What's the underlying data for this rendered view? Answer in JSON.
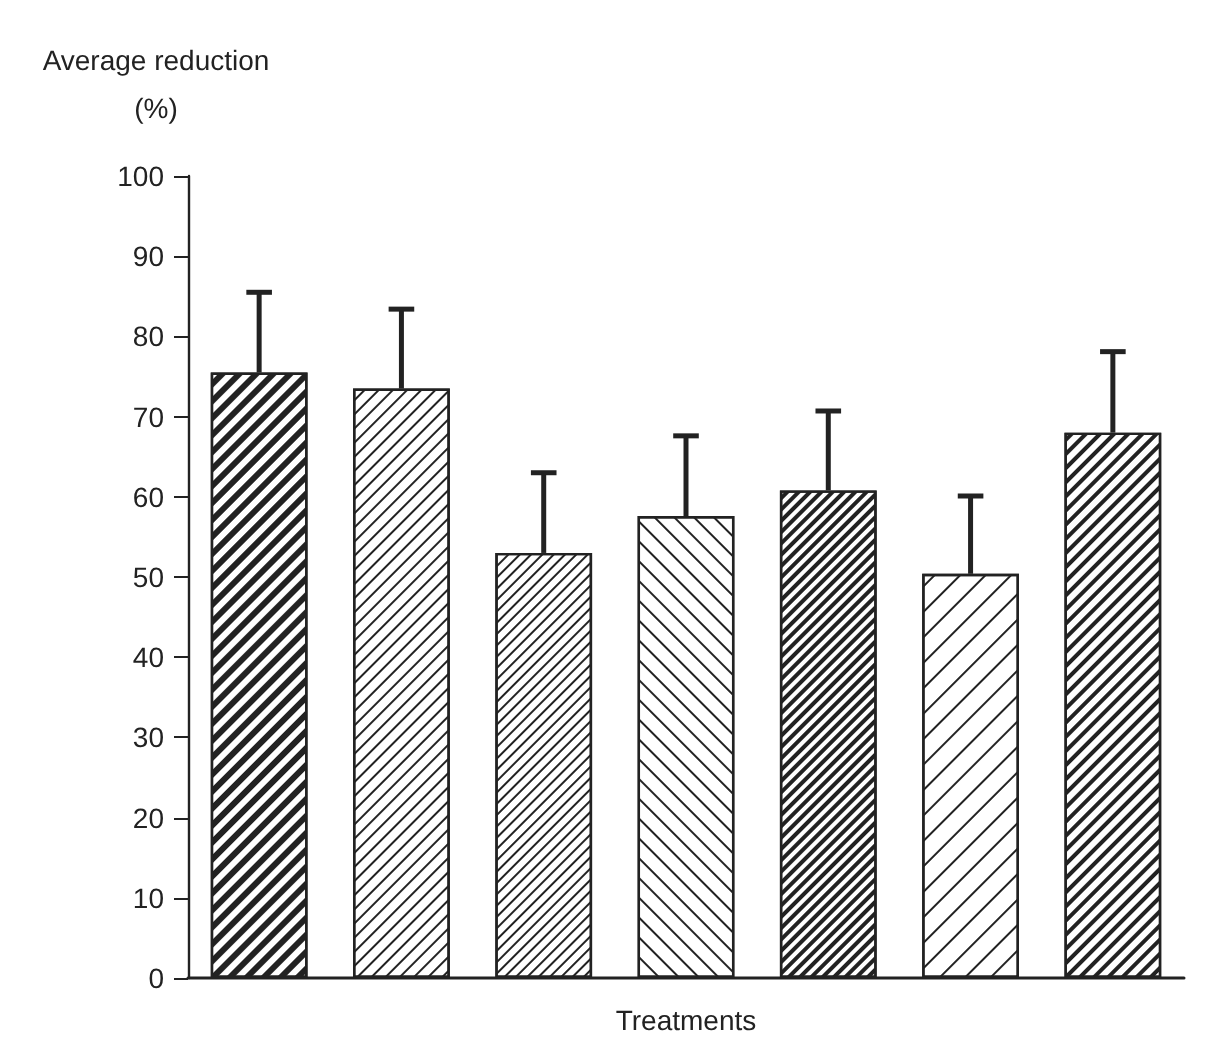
{
  "chart_data": {
    "type": "bar",
    "ylabel": "Average reduction\n(%)",
    "xlabel": "Treatments",
    "categories": [
      null,
      null,
      null,
      null,
      null,
      null,
      null
    ],
    "values": [
      75.5,
      73.5,
      53,
      57.6,
      60.8,
      50.4,
      68
    ],
    "errors": [
      [
        75.5,
        85.5
      ],
      [
        73.5,
        83.4
      ],
      [
        53,
        63
      ],
      [
        57.6,
        67.6
      ],
      [
        60.8,
        70.7
      ],
      [
        50.4,
        60.1
      ],
      [
        68,
        78.1
      ]
    ],
    "color": "#222222",
    "ylim": [
      0,
      100
    ],
    "yticks": [
      0,
      10,
      20,
      30,
      40,
      50,
      60,
      70,
      80,
      90,
      100
    ],
    "grid": false
  }
}
